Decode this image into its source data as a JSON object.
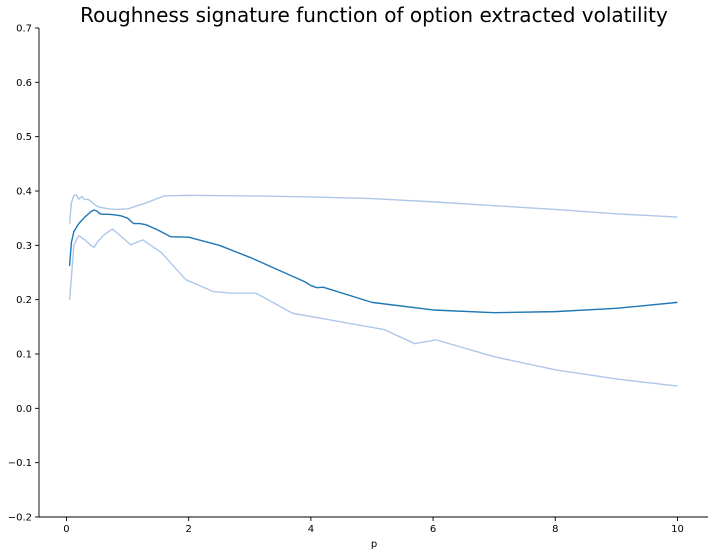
{
  "chart_data": {
    "type": "line",
    "title": "Roughness signature function of option extracted volatility",
    "xlabel": "p",
    "ylabel": "",
    "xlim": [
      -0.45,
      10.5
    ],
    "ylim": [
      -0.2,
      0.7
    ],
    "xticks": [
      0,
      2,
      4,
      6,
      8,
      10
    ],
    "yticks": [
      -0.2,
      -0.1,
      0.0,
      0.1,
      0.2,
      0.3,
      0.4,
      0.5,
      0.6,
      0.7
    ],
    "ytick_labels": [
      "−0.2",
      "−0.1",
      "0.0",
      "0.1",
      "0.2",
      "0.3",
      "0.4",
      "0.5",
      "0.6",
      "0.7"
    ],
    "spines": "left-bottom",
    "grid": false,
    "series": [
      {
        "color": "#aec7e8",
        "role": "upper-band",
        "x": [
          0.05,
          0.08,
          0.12,
          0.16,
          0.2,
          0.25,
          0.3,
          0.35,
          0.4,
          0.45,
          0.5,
          0.55,
          0.6,
          0.7,
          0.8,
          1.0,
          1.3,
          1.6,
          2.0,
          3.0,
          4.0,
          5.0,
          6.0,
          7.0,
          8.0,
          9.0,
          10.0
        ],
        "y": [
          0.34,
          0.378,
          0.392,
          0.393,
          0.385,
          0.39,
          0.384,
          0.385,
          0.381,
          0.376,
          0.372,
          0.37,
          0.369,
          0.367,
          0.366,
          0.367,
          0.378,
          0.391,
          0.392,
          0.391,
          0.389,
          0.386,
          0.38,
          0.373,
          0.366,
          0.358,
          0.352
        ]
      },
      {
        "color": "#1f77b4",
        "role": "mean",
        "x": [
          0.05,
          0.08,
          0.12,
          0.2,
          0.3,
          0.4,
          0.45,
          0.5,
          0.55,
          0.6,
          0.7,
          0.8,
          0.9,
          1.0,
          1.1,
          1.2,
          1.3,
          1.5,
          1.7,
          2.0,
          2.5,
          3.0,
          3.5,
          3.9,
          4.0,
          4.1,
          4.2,
          5.0,
          6.0,
          7.0,
          8.0,
          9.0,
          10.0
        ],
        "y": [
          0.262,
          0.305,
          0.325,
          0.34,
          0.352,
          0.362,
          0.365,
          0.363,
          0.358,
          0.357,
          0.357,
          0.356,
          0.354,
          0.35,
          0.34,
          0.34,
          0.338,
          0.328,
          0.316,
          0.315,
          0.3,
          0.278,
          0.253,
          0.233,
          0.226,
          0.222,
          0.223,
          0.195,
          0.181,
          0.176,
          0.178,
          0.184,
          0.195
        ]
      },
      {
        "color": "#aec7e8",
        "role": "lower-band",
        "x": [
          0.05,
          0.08,
          0.12,
          0.2,
          0.3,
          0.4,
          0.45,
          0.5,
          0.6,
          0.75,
          0.9,
          1.05,
          1.25,
          1.55,
          1.95,
          2.4,
          2.7,
          3.1,
          3.7,
          4.2,
          5.2,
          5.7,
          6.05,
          7.0,
          8.0,
          9.0,
          10.0
        ],
        "y": [
          0.2,
          0.24,
          0.3,
          0.318,
          0.31,
          0.3,
          0.296,
          0.305,
          0.318,
          0.33,
          0.316,
          0.301,
          0.31,
          0.287,
          0.237,
          0.215,
          0.212,
          0.212,
          0.175,
          0.165,
          0.145,
          0.119,
          0.126,
          0.095,
          0.071,
          0.054,
          0.041
        ]
      }
    ]
  }
}
